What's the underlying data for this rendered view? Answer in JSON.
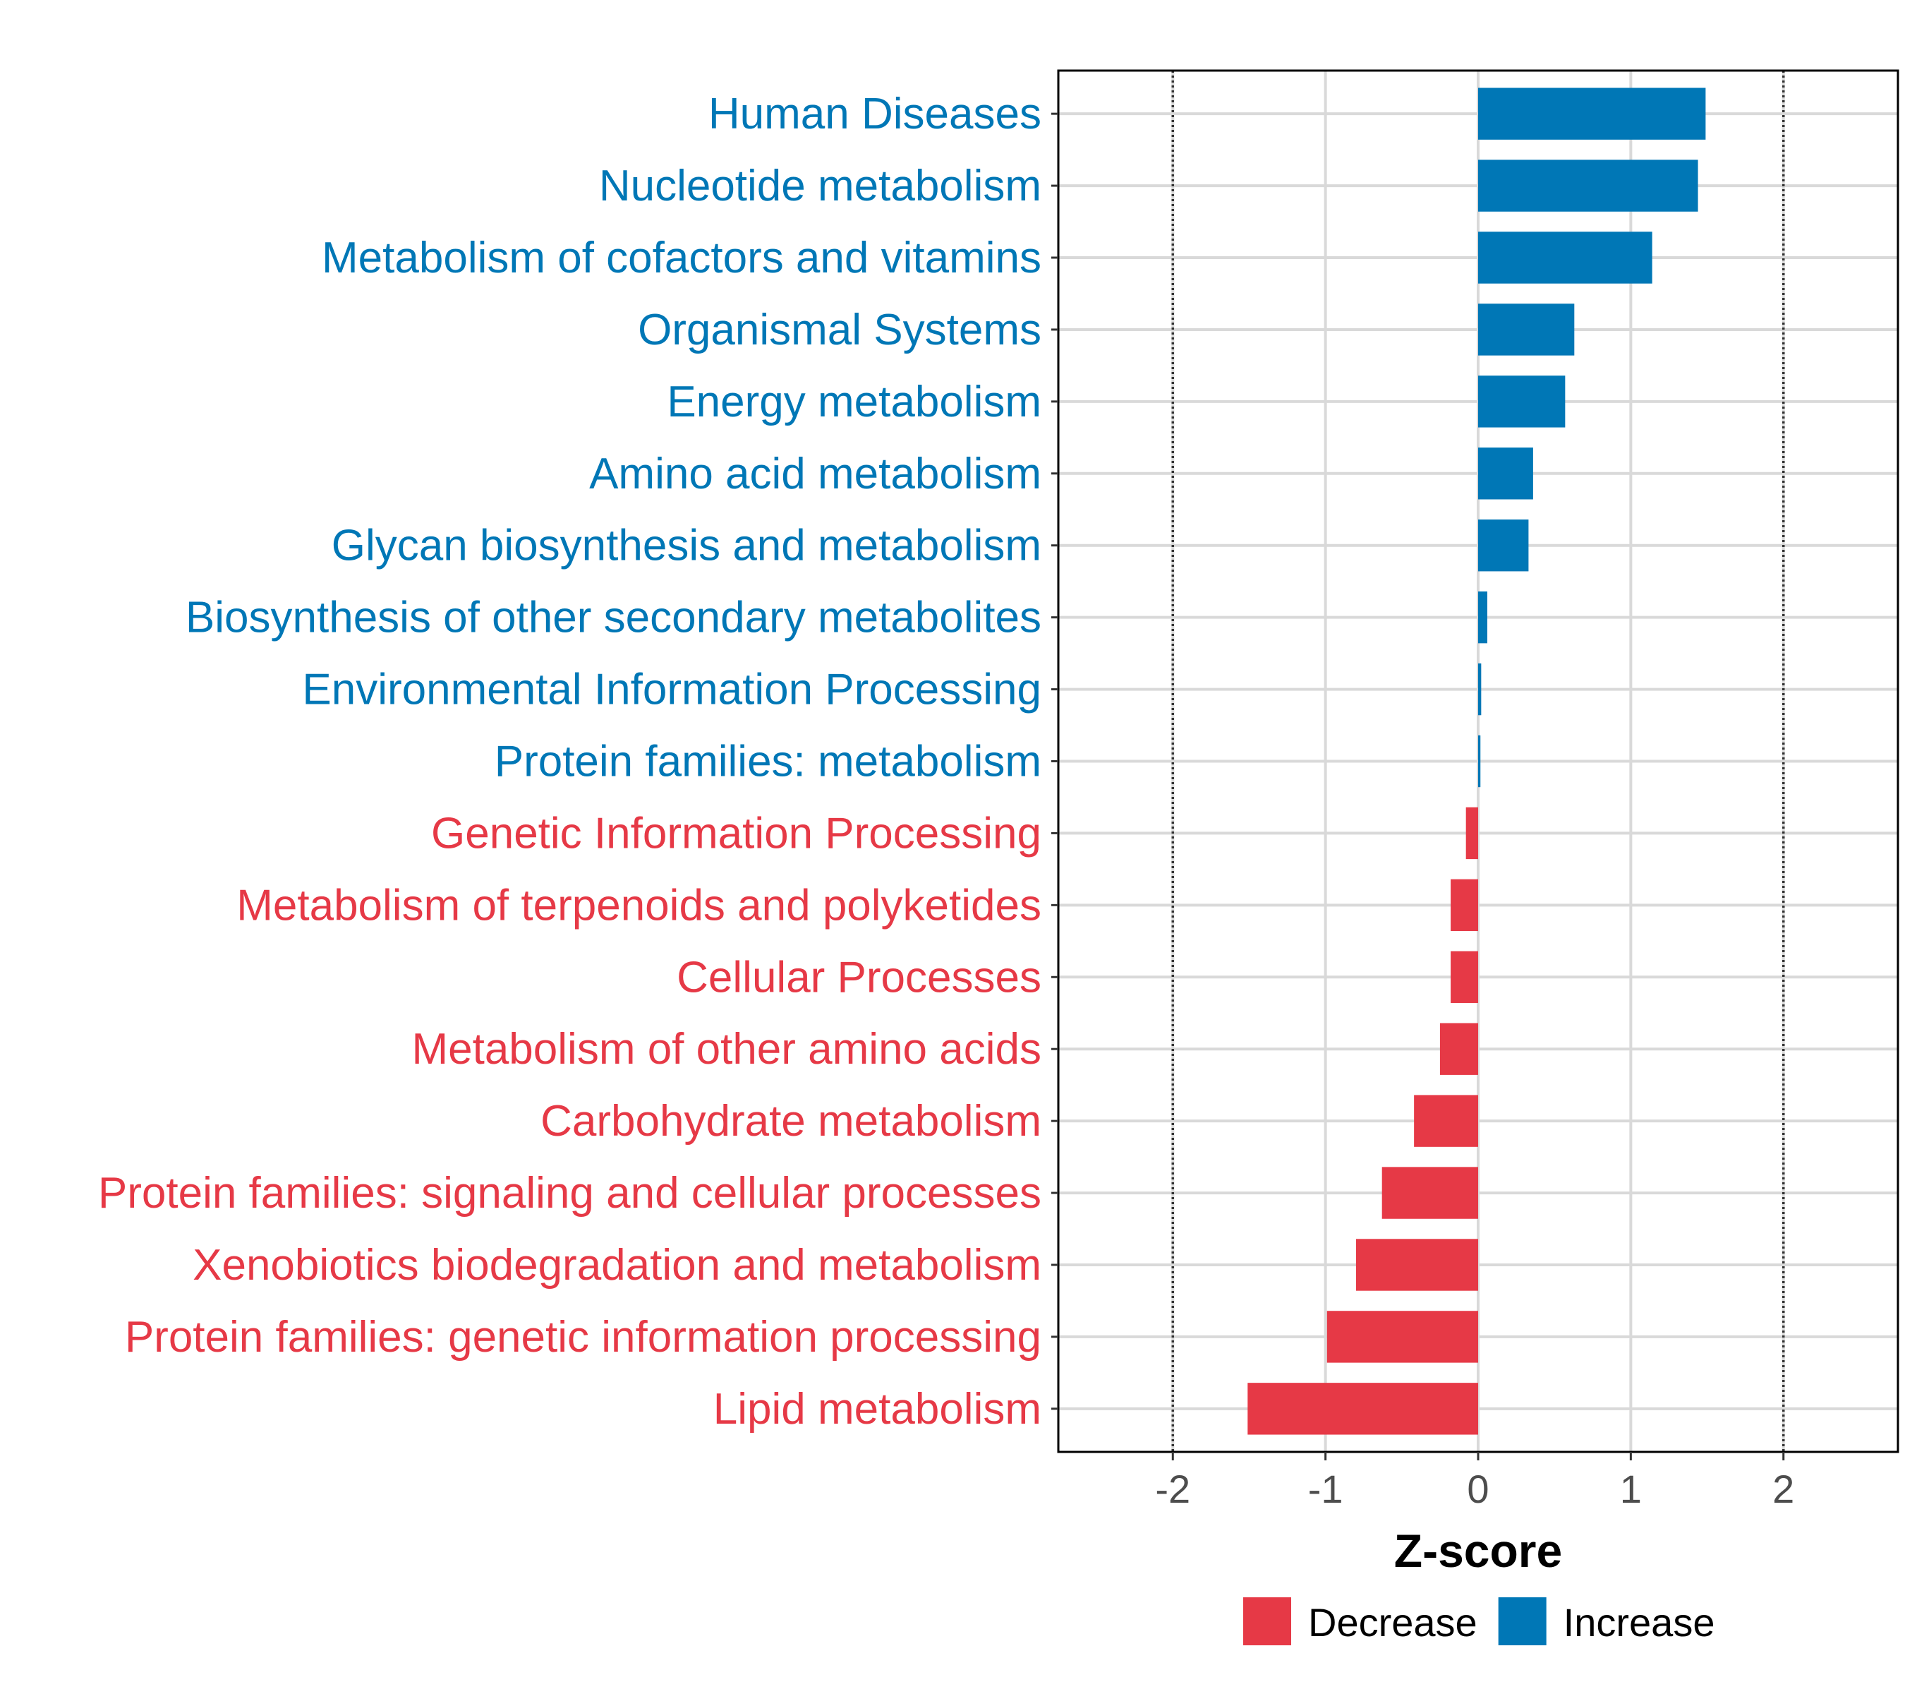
{
  "chart_data": {
    "type": "bar",
    "orientation": "horizontal",
    "xlabel": "Z-score",
    "xlim": [
      -2.75,
      2.75
    ],
    "x_ticks": [
      -2,
      -1,
      0,
      1,
      2
    ],
    "x_tick_labels": [
      "-2",
      "-1",
      "0",
      "1",
      "2"
    ],
    "reference_lines": [
      -2,
      2
    ],
    "grid": true,
    "categories": [
      "Human Diseases",
      "Nucleotide metabolism",
      "Metabolism of cofactors and vitamins",
      "Organismal Systems",
      "Energy metabolism",
      "Amino acid metabolism",
      "Glycan biosynthesis and metabolism",
      "Biosynthesis of other secondary metabolites",
      "Environmental Information Processing",
      "Protein families: metabolism",
      "Genetic Information Processing",
      "Metabolism of terpenoids and polyketides",
      "Cellular Processes",
      "Metabolism of other amino acids",
      "Carbohydrate metabolism",
      "Protein families: signaling and cellular processes",
      "Xenobiotics biodegradation and metabolism",
      "Protein families: genetic information processing",
      "Lipid metabolism"
    ],
    "values": [
      1.49,
      1.44,
      1.14,
      0.63,
      0.57,
      0.36,
      0.33,
      0.06,
      0.02,
      0.015,
      -0.08,
      -0.18,
      -0.18,
      -0.25,
      -0.42,
      -0.63,
      -0.8,
      -0.99,
      -1.51
    ],
    "groups": [
      "Increase",
      "Increase",
      "Increase",
      "Increase",
      "Increase",
      "Increase",
      "Increase",
      "Increase",
      "Increase",
      "Increase",
      "Decrease",
      "Decrease",
      "Decrease",
      "Decrease",
      "Decrease",
      "Decrease",
      "Decrease",
      "Decrease",
      "Decrease"
    ],
    "legend": {
      "position": "bottom",
      "entries": [
        {
          "label": "Decrease",
          "color": "#e63946"
        },
        {
          "label": "Increase",
          "color": "#0077b6"
        }
      ]
    },
    "colors": {
      "Decrease": "#e63946",
      "Increase": "#0077b6"
    }
  }
}
